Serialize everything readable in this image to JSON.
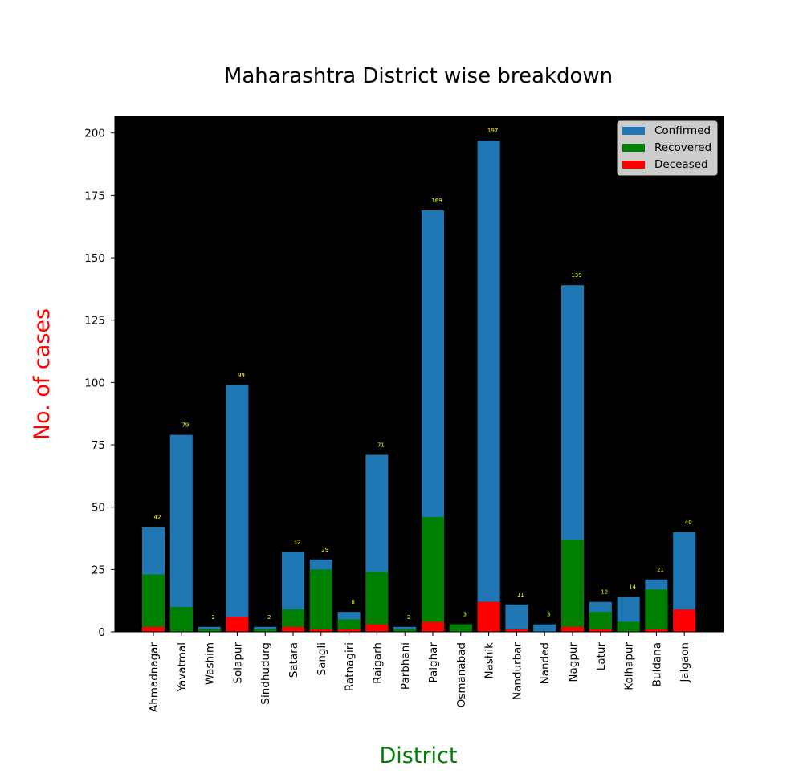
{
  "chart_data": {
    "type": "bar",
    "title": "Maharashtra District wise breakdown",
    "xlabel": "District",
    "ylabel": "No. of cases",
    "ylim": [
      0,
      207
    ],
    "yticks": [
      0,
      25,
      50,
      75,
      100,
      125,
      150,
      175,
      200
    ],
    "grid": false,
    "legend_position": "top-right",
    "background_color": "#000000",
    "xlabel_color": "#008000",
    "ylabel_color": "#ff0000",
    "data_label_color": "#ffff00",
    "categories": [
      "Ahmadnagar",
      "Yavatmal",
      "Washim",
      "Solapur",
      "Sindhudurg",
      "Satara",
      "Sangli",
      "Ratnagiri",
      "Raigarh",
      "Parbhani",
      "Palghar",
      "Osmanabad",
      "Nashik",
      "Nandurbar",
      "Nanded",
      "Nagpur",
      "Latur",
      "Kolhapur",
      "Buldana",
      "Jalgaon"
    ],
    "series": [
      {
        "name": "Confirmed",
        "color": "#1f77b4",
        "values": [
          42,
          79,
          2,
          99,
          2,
          32,
          29,
          8,
          71,
          2,
          169,
          3,
          197,
          11,
          3,
          139,
          12,
          14,
          21,
          40
        ]
      },
      {
        "name": "Recovered",
        "color": "#008000",
        "values": [
          23,
          10,
          1,
          6,
          1,
          9,
          25,
          5,
          24,
          1,
          46,
          3,
          12,
          1,
          0,
          37,
          8,
          4,
          17,
          9
        ]
      },
      {
        "name": "Deceased",
        "color": "#ff0000",
        "values": [
          2,
          0,
          0,
          6,
          0,
          2,
          1,
          1,
          3,
          0,
          4,
          0,
          12,
          1,
          0,
          2,
          1,
          0,
          1,
          9
        ]
      }
    ],
    "data_labels": [
      "42",
      "79",
      "2",
      "99",
      "2",
      "32",
      "29",
      "8",
      "71",
      "2",
      "169",
      "3",
      "197",
      "11",
      "3",
      "139",
      "12",
      "14",
      "21",
      "40"
    ]
  }
}
